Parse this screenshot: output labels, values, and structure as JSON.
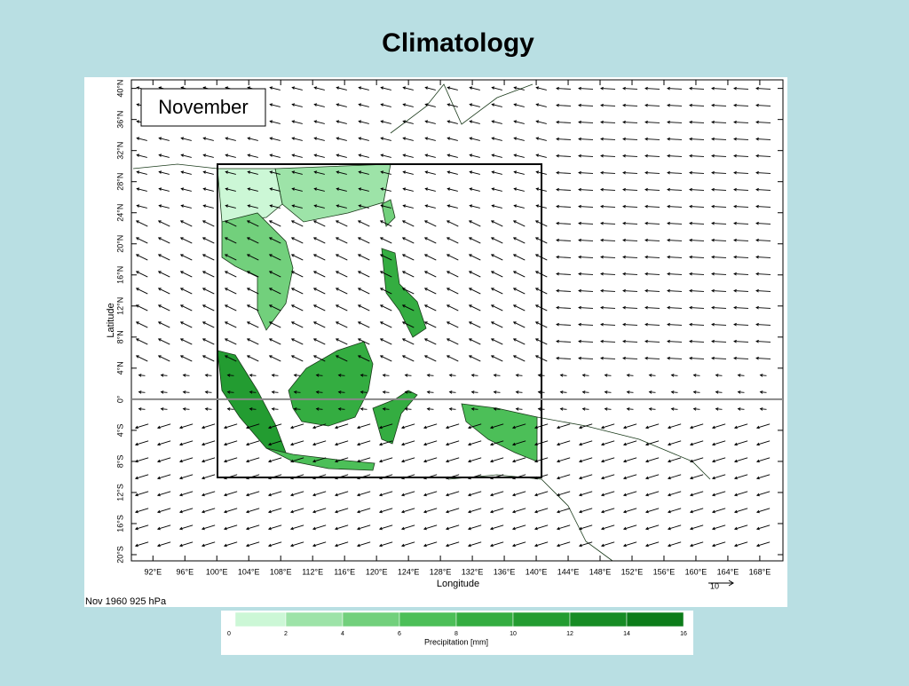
{
  "title": "Climatology",
  "map": {
    "panel_label": "November",
    "x_label": "Longitude",
    "y_label": "Latitude",
    "xlim": [
      89.3,
      170.9
    ],
    "ylim": [
      -20.8,
      41.1
    ],
    "xticks": [
      {
        "value": 92,
        "label": "92°E"
      },
      {
        "value": 96,
        "label": "96°E"
      },
      {
        "value": 100,
        "label": "100°E"
      },
      {
        "value": 104,
        "label": "104°E"
      },
      {
        "value": 108,
        "label": "108°E"
      },
      {
        "value": 112,
        "label": "112°E"
      },
      {
        "value": 116,
        "label": "116°E"
      },
      {
        "value": 120,
        "label": "120°E"
      },
      {
        "value": 124,
        "label": "124°E"
      },
      {
        "value": 128,
        "label": "128°E"
      },
      {
        "value": 132,
        "label": "132°E"
      },
      {
        "value": 136,
        "label": "136°E"
      },
      {
        "value": 140,
        "label": "140°E"
      },
      {
        "value": 144,
        "label": "144°E"
      },
      {
        "value": 148,
        "label": "148°E"
      },
      {
        "value": 152,
        "label": "152°E"
      },
      {
        "value": 156,
        "label": "156°E"
      },
      {
        "value": 160,
        "label": "160°E"
      },
      {
        "value": 164,
        "label": "164°E"
      },
      {
        "value": 168,
        "label": "168°E"
      }
    ],
    "yticks": [
      {
        "value": 40,
        "label": "40°N"
      },
      {
        "value": 36,
        "label": "36°N"
      },
      {
        "value": 32,
        "label": "32°N"
      },
      {
        "value": 28,
        "label": "28°N"
      },
      {
        "value": 24,
        "label": "24°N"
      },
      {
        "value": 20,
        "label": "20°N"
      },
      {
        "value": 16,
        "label": "16°N"
      },
      {
        "value": 12,
        "label": "12°N"
      },
      {
        "value": 8,
        "label": "8°N"
      },
      {
        "value": 4,
        "label": "4°N"
      },
      {
        "value": 0,
        "label": "0°"
      },
      {
        "value": -4,
        "label": "4°S"
      },
      {
        "value": -8,
        "label": "8°S"
      },
      {
        "value": -12,
        "label": "12°S"
      },
      {
        "value": -16,
        "label": "16°S"
      },
      {
        "value": -20,
        "label": "20°S"
      }
    ],
    "reference_vector_label": 10,
    "footer": "Nov 1960 925 hPa"
  },
  "colorbar": {
    "label": "Precipitation [mm]",
    "ticks": [
      0,
      2,
      4,
      6,
      8,
      10,
      12,
      14,
      16
    ],
    "colors": [
      "#ccf7d6",
      "#9de3a8",
      "#72d07c",
      "#4cbf58",
      "#34ad41",
      "#239c31",
      "#178c25",
      "#0c7c1a"
    ]
  }
}
